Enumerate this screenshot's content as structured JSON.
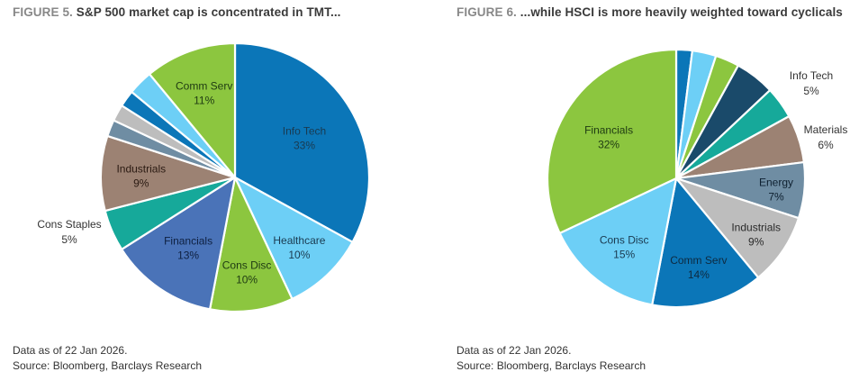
{
  "chart_data": [
    {
      "type": "pie",
      "figure_number": "FIGURE 5.",
      "title": "S&P 500 market cap is concentrated in TMT...",
      "note": "Data as of 22 Jan 2026.",
      "source": "Source: Bloomberg, Barclays Research",
      "slices": [
        {
          "label": "Info Tech",
          "value_text": "33%",
          "value": 33,
          "color": "#0b76b8",
          "text_color": "#1a3a50"
        },
        {
          "label": "Healthcare",
          "value_text": "10%",
          "value": 10,
          "color": "#6dcff6",
          "text_color": "#1a3a50"
        },
        {
          "label": "Cons Disc",
          "value_text": "10%",
          "value": 10,
          "color": "#8cc63f",
          "text_color": "#1e3a12"
        },
        {
          "label": "Financials",
          "value_text": "13%",
          "value": 13,
          "color": "#4a73b8",
          "text_color": "#0e2040"
        },
        {
          "label": "",
          "value_text": "",
          "value": 5,
          "color": "#16a99a",
          "text_color": "#333333"
        },
        {
          "label": "Industrials",
          "value_text": "9%",
          "value": 9,
          "color": "#9c8273",
          "text_color": "#2a1a12"
        },
        {
          "label": "",
          "value_text": "",
          "value": 2,
          "color": "#6f8da3",
          "text_color": "#333333"
        },
        {
          "label": "",
          "value_text": "",
          "value": 2,
          "color": "#bdbdbd",
          "text_color": "#333333"
        },
        {
          "label": "",
          "value_text": "",
          "value": 2,
          "color": "#0b76b8",
          "text_color": "#333333"
        },
        {
          "label": "",
          "value_text": "",
          "value": 3,
          "color": "#6dcff6",
          "text_color": "#333333"
        },
        {
          "label": "Comm Serv",
          "value_text": "11%",
          "value": 11,
          "color": "#8cc63f",
          "text_color": "#1e3a12"
        }
      ],
      "external_labels": [
        {
          "label": "Cons Staples",
          "value_text": "5%"
        }
      ]
    },
    {
      "type": "pie",
      "figure_number": "FIGURE 6.",
      "title": "...while HSCI is more heavily weighted toward cyclicals",
      "note": "Data as of 22 Jan 2026.",
      "source": "Source: Bloomberg, Barclays Research",
      "slices": [
        {
          "label": "",
          "value_text": "",
          "value": 2,
          "color": "#0b76b8",
          "text_color": "#333333"
        },
        {
          "label": "",
          "value_text": "",
          "value": 3,
          "color": "#6dcff6",
          "text_color": "#333333"
        },
        {
          "label": "",
          "value_text": "",
          "value": 3,
          "color": "#8cc63f",
          "text_color": "#333333"
        },
        {
          "label": "",
          "value_text": "",
          "value": 5,
          "color": "#1a4a6a",
          "text_color": "#333333"
        },
        {
          "label": "",
          "value_text": "",
          "value": 4,
          "color": "#16a99a",
          "text_color": "#333333"
        },
        {
          "label": "",
          "value_text": "",
          "value": 6,
          "color": "#9c8273",
          "text_color": "#333333"
        },
        {
          "label": "Energy",
          "value_text": "7%",
          "value": 7,
          "color": "#6f8da3",
          "text_color": "#0e2030"
        },
        {
          "label": "Industrials",
          "value_text": "9%",
          "value": 9,
          "color": "#bdbdbd",
          "text_color": "#2a2a2a"
        },
        {
          "label": "Comm Serv",
          "value_text": "14%",
          "value": 14,
          "color": "#0b76b8",
          "text_color": "#0e2a40"
        },
        {
          "label": "Cons Disc",
          "value_text": "15%",
          "value": 15,
          "color": "#6dcff6",
          "text_color": "#1a3a50"
        },
        {
          "label": "Financials",
          "value_text": "32%",
          "value": 32,
          "color": "#8cc63f",
          "text_color": "#1e3a12"
        }
      ],
      "external_labels": [
        {
          "label": "Info Tech",
          "value_text": "5%"
        },
        {
          "label": "Materials",
          "value_text": "6%"
        }
      ]
    }
  ]
}
